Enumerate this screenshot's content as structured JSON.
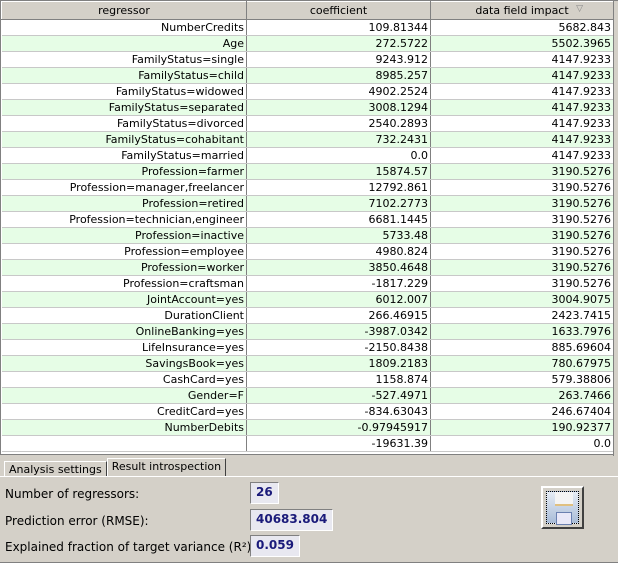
{
  "table": {
    "columns": [
      "regressor",
      "coefficient",
      "data field impact"
    ],
    "sort_icon": "sort-descending-icon",
    "rows": [
      [
        "NumberCredits",
        "109.81344",
        "5682.843"
      ],
      [
        "Age",
        "272.5722",
        "5502.3965"
      ],
      [
        "FamilyStatus=single",
        "9243.912",
        "4147.9233"
      ],
      [
        "FamilyStatus=child",
        "8985.257",
        "4147.9233"
      ],
      [
        "FamilyStatus=widowed",
        "4902.2524",
        "4147.9233"
      ],
      [
        "FamilyStatus=separated",
        "3008.1294",
        "4147.9233"
      ],
      [
        "FamilyStatus=divorced",
        "2540.2893",
        "4147.9233"
      ],
      [
        "FamilyStatus=cohabitant",
        "732.2431",
        "4147.9233"
      ],
      [
        "FamilyStatus=married",
        "0.0",
        "4147.9233"
      ],
      [
        "Profession=farmer",
        "15874.57",
        "3190.5276"
      ],
      [
        "Profession=manager,freelancer",
        "12792.861",
        "3190.5276"
      ],
      [
        "Profession=retired",
        "7102.2773",
        "3190.5276"
      ],
      [
        "Profession=technician,engineer",
        "6681.1445",
        "3190.5276"
      ],
      [
        "Profession=inactive",
        "5733.48",
        "3190.5276"
      ],
      [
        "Profession=employee",
        "4980.824",
        "3190.5276"
      ],
      [
        "Profession=worker",
        "3850.4648",
        "3190.5276"
      ],
      [
        "Profession=craftsman",
        "-1817.229",
        "3190.5276"
      ],
      [
        "JointAccount=yes",
        "6012.007",
        "3004.9075"
      ],
      [
        "DurationClient",
        "266.46915",
        "2423.7415"
      ],
      [
        "OnlineBanking=yes",
        "-3987.0342",
        "1633.7976"
      ],
      [
        "LifeInsurance=yes",
        "-2150.8438",
        "885.69604"
      ],
      [
        "SavingsBook=yes",
        "1809.2183",
        "780.67975"
      ],
      [
        "CashCard=yes",
        "1158.874",
        "579.38806"
      ],
      [
        "Gender=F",
        "-527.4971",
        "263.7466"
      ],
      [
        "CreditCard=yes",
        "-834.63043",
        "246.67404"
      ],
      [
        "NumberDebits",
        "-0.97945917",
        "190.92377"
      ],
      [
        "",
        "-19631.39",
        "0.0"
      ]
    ]
  },
  "tabs": [
    "Analysis settings",
    "Result introspection"
  ],
  "results": [
    {
      "label": "Number of regressors:",
      "value": "26"
    },
    {
      "label": "Prediction error (RMSE):",
      "value": "40683.804"
    },
    {
      "label": "Explained fraction of target variance (R²):",
      "value": "0.059"
    }
  ],
  "save_icon": "floppy-disk-icon"
}
